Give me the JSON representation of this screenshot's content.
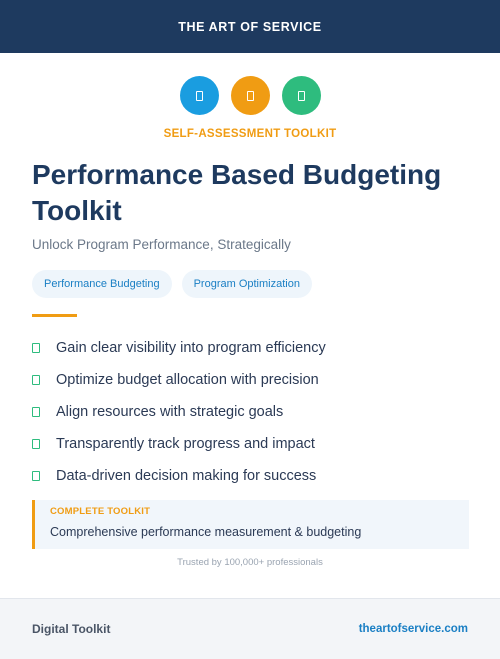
{
  "header": {
    "brand": "THE ART OF SERVICE",
    "background": "#1e3a5f"
  },
  "icons": [
    {
      "name": "document-icon",
      "color": "#1a9de0"
    },
    {
      "name": "document-icon",
      "color": "#f09c13"
    },
    {
      "name": "document-icon",
      "color": "#2ebc7e"
    }
  ],
  "kicker": "SELF-ASSESSMENT TOOLKIT",
  "title": "Performance Based Budgeting Toolkit",
  "subtitle": "Unlock Program Performance, Strategically",
  "tags": [
    "Performance Budgeting",
    "Program Optimization"
  ],
  "features": [
    "Gain clear visibility into program efficiency",
    "Optimize budget allocation with precision",
    "Align resources with strategic goals",
    "Transparently track progress and impact",
    "Data-driven decision making for success"
  ],
  "callout": {
    "title": "COMPLETE TOOLKIT",
    "description": "Comprehensive performance measurement & budgeting"
  },
  "trusted": "Trusted by 100,000+ professionals",
  "footer": {
    "left": "Digital Toolkit",
    "right": "theartofservice.com"
  },
  "colors": {
    "accent": "#f09c13",
    "link": "#1a7fc4",
    "check": "#2ebc7e"
  }
}
